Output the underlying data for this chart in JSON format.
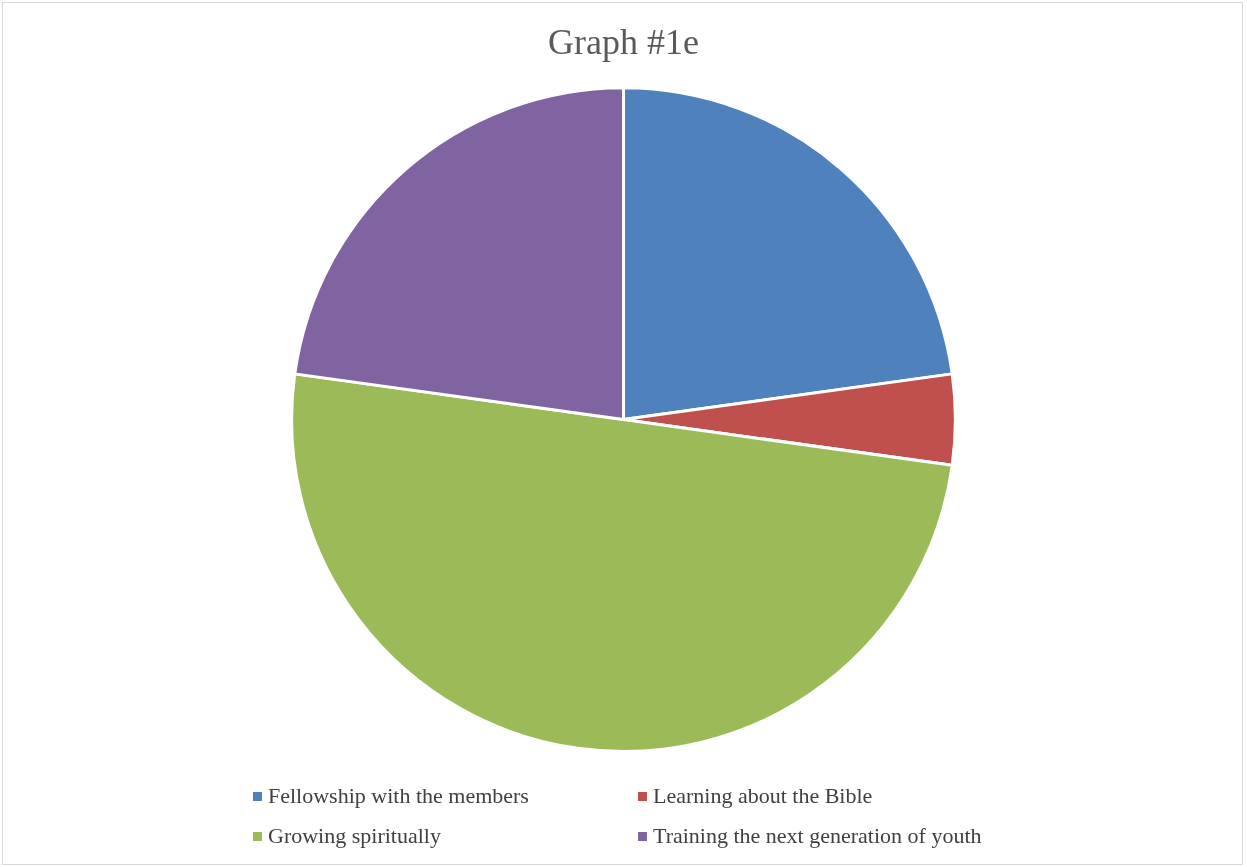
{
  "chart_data": {
    "type": "pie",
    "title": "Graph #1e",
    "categories": [
      "Fellowship with the members",
      "Learning about the Bible",
      "Growing spiritually",
      "Training the next generation of youth"
    ],
    "values": [
      22.8,
      4.4,
      50,
      22.8
    ],
    "colors": [
      "#4f81bd",
      "#c0504d",
      "#9bbb59",
      "#8064a2"
    ],
    "legend": "bottom"
  }
}
